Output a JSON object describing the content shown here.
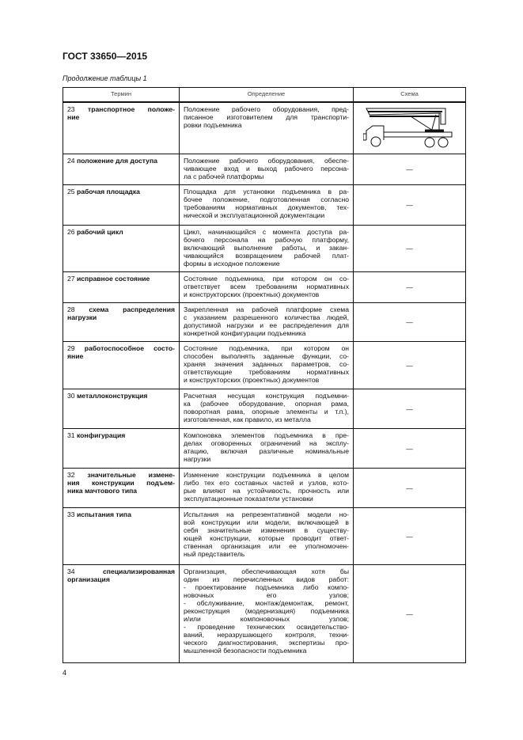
{
  "header": {
    "title": "ГОСТ 33650—2015",
    "caption": "Продолжение таблицы 1"
  },
  "table": {
    "columns": [
      "Термин",
      "Определение",
      "Схема"
    ],
    "rows": [
      {
        "num": "23",
        "term": [
          "транспортное положе-",
          "ние"
        ],
        "definition": [
          "Положение рабочего оборудования, пред-",
          "писанное изготовителем для транспорти-",
          "ровки подъемника"
        ],
        "scheme": "truck-diagram"
      },
      {
        "num": "24",
        "term": [
          "положение для доступа"
        ],
        "definition": [
          "Положение рабочего оборудования, обеспе-",
          "чивающее вход и выход рабочего персона-",
          "ла с рабочей платформы"
        ],
        "scheme": "—"
      },
      {
        "num": "25",
        "term": [
          "рабочая площадка"
        ],
        "definition": [
          "Площадка для установки подъемника в ра-",
          "бочее положение, подготовленная согласно",
          "требованиям нормативных документов, тех-",
          "нической и эксплуатационной документации"
        ],
        "scheme": "—"
      },
      {
        "num": "26",
        "term": [
          "рабочий цикл"
        ],
        "definition": [
          "Цикл, начинающийся с момента доступа ра-",
          "бочего персонала на рабочую платформу,",
          "включающий выполнение работы, и закан-",
          "чивающийся возвращением рабочей плат-",
          "формы в исходное положение"
        ],
        "scheme": "—"
      },
      {
        "num": "27",
        "term": [
          "исправное состояние"
        ],
        "definition": [
          "Состояние подъемника, при котором он со-",
          "ответствует всем требованиям нормативных",
          "и конструкторских (проектных) документов"
        ],
        "scheme": "—"
      },
      {
        "num": "28",
        "term": [
          "схема распределения",
          "нагрузки"
        ],
        "definition": [
          "Закрепленная на рабочей платформе схема",
          "с указанием разрешенного количества людей,",
          "допустимой нагрузки и ее распределения для",
          "конкретной конфигурации подъемника"
        ],
        "scheme": "—"
      },
      {
        "num": "29",
        "term": [
          "работоспособное состо-",
          "яние"
        ],
        "definition": [
          "Состояние подъемника, при котором он",
          "способен выполнять заданные функции, со-",
          "храняя значения заданных параметров, со-",
          "ответствующие требованиям нормативных",
          "и конструкторских (проектных) документов"
        ],
        "scheme": "—"
      },
      {
        "num": "30",
        "term": [
          "металлоконструкция"
        ],
        "definition": [
          "Расчетная несущая конструкция подъемни-",
          "ка (рабочее оборудование, опорная рама,",
          "поворотная рама, опорные элементы и т.п.),",
          "изготовленная, как правило, из металла"
        ],
        "scheme": "—"
      },
      {
        "num": "31",
        "term": [
          "конфигурация"
        ],
        "definition": [
          "Компоновка элементов подъемника в пре-",
          "делах оговоренных ограничений на эксплу-",
          "атацию, включая различные номинальные",
          "нагрузки"
        ],
        "scheme": "—"
      },
      {
        "num": "32",
        "term": [
          "значительные измене-",
          "ния конструкции подъем-",
          "ника мачтового типа"
        ],
        "definition": [
          "Изменение конструкции подъемника в целом",
          "либо тех его составных частей и узлов, кото-",
          "рые влияют на устойчивость, прочность или",
          "эксплуатационные показатели установки"
        ],
        "scheme": "—"
      },
      {
        "num": "33",
        "term": [
          "испытания типа"
        ],
        "definition": [
          "Испытания на репрезентативной модели но-",
          "вой конструкции или модели, включающей в",
          "себя значительные изменения в существу-",
          "ющей конструкции, которые проводит ответ-",
          "ственная организация или ее уполномочен-",
          "ный представитель"
        ],
        "scheme": "—"
      },
      {
        "num": "34",
        "term": [
          "специализированная",
          "организация"
        ],
        "definition": [
          "Организация, обеспечивающая хотя бы",
          "один из перечисленных видов работ:",
          "- проектирование подъемника либо компо-",
          "новочных его узлов;",
          "- обслуживание, монтаж/демонтаж, ремонт,",
          "реконструкция (модернизация) подъемника",
          "и/или компоновочных узлов;",
          "- проведение технических освидетельство-",
          "ваний, неразрушающего контроля, техни-",
          "ческого диагностирования, экспертизы про-",
          "мышленной безопасности подъемника"
        ],
        "scheme": "—"
      }
    ]
  },
  "footer": {
    "page_number": "4"
  }
}
